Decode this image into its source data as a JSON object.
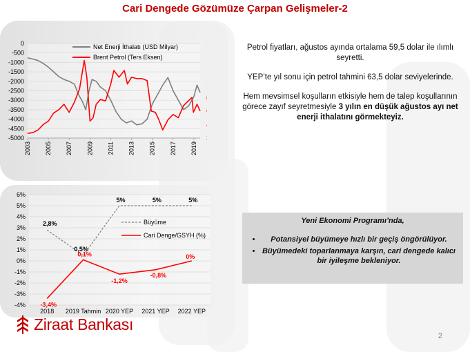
{
  "slide": {
    "title": "Cari Dengede Gözümüze Çarpan Gelişmeler-2",
    "page_number": "2"
  },
  "info": {
    "p1": "Petrol fiyatları, ağustos ayında ortalama 59,5 dolar ile ılımlı seyretti.",
    "p2": "YEP’te yıl sonu için petrol tahmini 63,5 dolar seviyelerinde.",
    "p3_normal": "Hem mevsimsel koşulların etkisiyle hem de talep koşullarının görece zayıf seyretmesiyle ",
    "p3_bold": "3 yılın en düşük ağustos ayı net enerji ithalatını görmekteyiz."
  },
  "program": {
    "heading": "Yeni Ekonomi Programı’nda,",
    "bullet1": "Potansiyel büyümeye hızlı bir geçiş öngörülüyor.",
    "bullet2": "Büyümedeki toparlanmaya karşın, cari dengede kalıcı bir iyileşme bekleniyor."
  },
  "logo": {
    "text": "Ziraat Bankası",
    "icon": "ziraat-wheat-icon"
  },
  "colors": {
    "red": "#ff0000",
    "gray": "#7f7f7f",
    "title_red": "#c00000",
    "box": "#d6d6d6"
  },
  "chart_data": [
    {
      "type": "line",
      "x_tick_labels": [
        "2003",
        "2005",
        "2007",
        "2009",
        "2011",
        "2013",
        "2015",
        "2017",
        "2019"
      ],
      "x_range": [
        2003,
        2019.6
      ],
      "left_axis": {
        "range": [
          -5000,
          0
        ],
        "ticks": [
          "0",
          "-500",
          "-1000",
          "-1500",
          "-2000",
          "-2500",
          "-3000",
          "-3500",
          "-4000",
          "-4500",
          "-5000"
        ]
      },
      "right_axis": {
        "range": [
          20,
          160
        ],
        "ticks": [
          "160",
          "140",
          "120",
          "100",
          "80",
          "60",
          "40",
          "20"
        ],
        "inverted": true
      },
      "grid": true,
      "legend": "top-left",
      "series": [
        {
          "name": "Net Enerji İthalatı (USD Milyar)",
          "axis": "left",
          "color": "#7f7f7f",
          "points": [
            [
              2003,
              -760
            ],
            [
              2003.5,
              -820
            ],
            [
              2004,
              -900
            ],
            [
              2004.5,
              -1050
            ],
            [
              2005,
              -1250
            ],
            [
              2005.5,
              -1500
            ],
            [
              2006,
              -1750
            ],
            [
              2006.5,
              -1900
            ],
            [
              2007,
              -2000
            ],
            [
              2007.5,
              -2150
            ],
            [
              2007.9,
              -2700
            ],
            [
              2008.3,
              -3100
            ],
            [
              2008.6,
              -3500
            ],
            [
              2008.9,
              -2500
            ],
            [
              2009.2,
              -1900
            ],
            [
              2009.6,
              -2000
            ],
            [
              2010,
              -2300
            ],
            [
              2010.5,
              -2500
            ],
            [
              2011,
              -3000
            ],
            [
              2011.5,
              -3600
            ],
            [
              2012,
              -4000
            ],
            [
              2012.5,
              -4200
            ],
            [
              2013,
              -4100
            ],
            [
              2013.5,
              -4300
            ],
            [
              2014,
              -4250
            ],
            [
              2014.5,
              -4000
            ],
            [
              2015,
              -3200
            ],
            [
              2015.5,
              -2700
            ],
            [
              2016,
              -2200
            ],
            [
              2016.5,
              -1800
            ],
            [
              2017,
              -2500
            ],
            [
              2017.5,
              -3000
            ],
            [
              2018,
              -3500
            ],
            [
              2018.5,
              -3300
            ],
            [
              2019,
              -2800
            ],
            [
              2019.3,
              -2200
            ],
            [
              2019.6,
              -2600
            ]
          ]
        },
        {
          "name": "Brent Petrol (Ters Eksen)",
          "axis": "right",
          "color": "#ff0000",
          "points": [
            [
              2003,
              27
            ],
            [
              2003.5,
              28
            ],
            [
              2004,
              32
            ],
            [
              2004.5,
              40
            ],
            [
              2005,
              45
            ],
            [
              2005.5,
              57
            ],
            [
              2006,
              62
            ],
            [
              2006.5,
              70
            ],
            [
              2007,
              58
            ],
            [
              2007.5,
              73
            ],
            [
              2008,
              93
            ],
            [
              2008.45,
              135
            ],
            [
              2008.7,
              110
            ],
            [
              2009,
              45
            ],
            [
              2009.3,
              50
            ],
            [
              2009.6,
              70
            ],
            [
              2010,
              77
            ],
            [
              2010.5,
              75
            ],
            [
              2011,
              100
            ],
            [
              2011.3,
              120
            ],
            [
              2011.8,
              110
            ],
            [
              2012.3,
              120
            ],
            [
              2012.6,
              100
            ],
            [
              2013,
              110
            ],
            [
              2013.5,
              108
            ],
            [
              2014,
              108
            ],
            [
              2014.5,
              105
            ],
            [
              2014.9,
              60
            ],
            [
              2015.3,
              58
            ],
            [
              2015.6,
              48
            ],
            [
              2016,
              32
            ],
            [
              2016.5,
              47
            ],
            [
              2017,
              55
            ],
            [
              2017.5,
              50
            ],
            [
              2018,
              68
            ],
            [
              2018.8,
              80
            ],
            [
              2018.95,
              58
            ],
            [
              2019.3,
              70
            ],
            [
              2019.6,
              60
            ]
          ]
        }
      ]
    },
    {
      "type": "line",
      "categories": [
        "2018",
        "2019 Tahmin",
        "2020 YEP",
        "2021 YEP",
        "2022 YEP"
      ],
      "y_axis": {
        "range": [
          -4,
          6
        ],
        "ticks": [
          "6%",
          "5%",
          "4%",
          "3%",
          "2%",
          "1%",
          "0%",
          "-1%",
          "-2%",
          "-3%",
          "-4%"
        ]
      },
      "grid": true,
      "legend": "center-right",
      "series": [
        {
          "name": "Büyüme",
          "color": "#7f7f7f",
          "dashed": true,
          "values": [
            2.8,
            0.5,
            5,
            5,
            5
          ],
          "labels": [
            "2,8%",
            "0,5%",
            "5%",
            "5%",
            "5%"
          ]
        },
        {
          "name": "Cari Denge/GSYH (%)",
          "color": "#ff0000",
          "dashed": false,
          "values": [
            -3.4,
            0.1,
            -1.2,
            -0.8,
            0
          ],
          "labels": [
            "-3,4%",
            "0,1%",
            "-1,2%",
            "-0,8%",
            "0%"
          ]
        }
      ]
    }
  ]
}
